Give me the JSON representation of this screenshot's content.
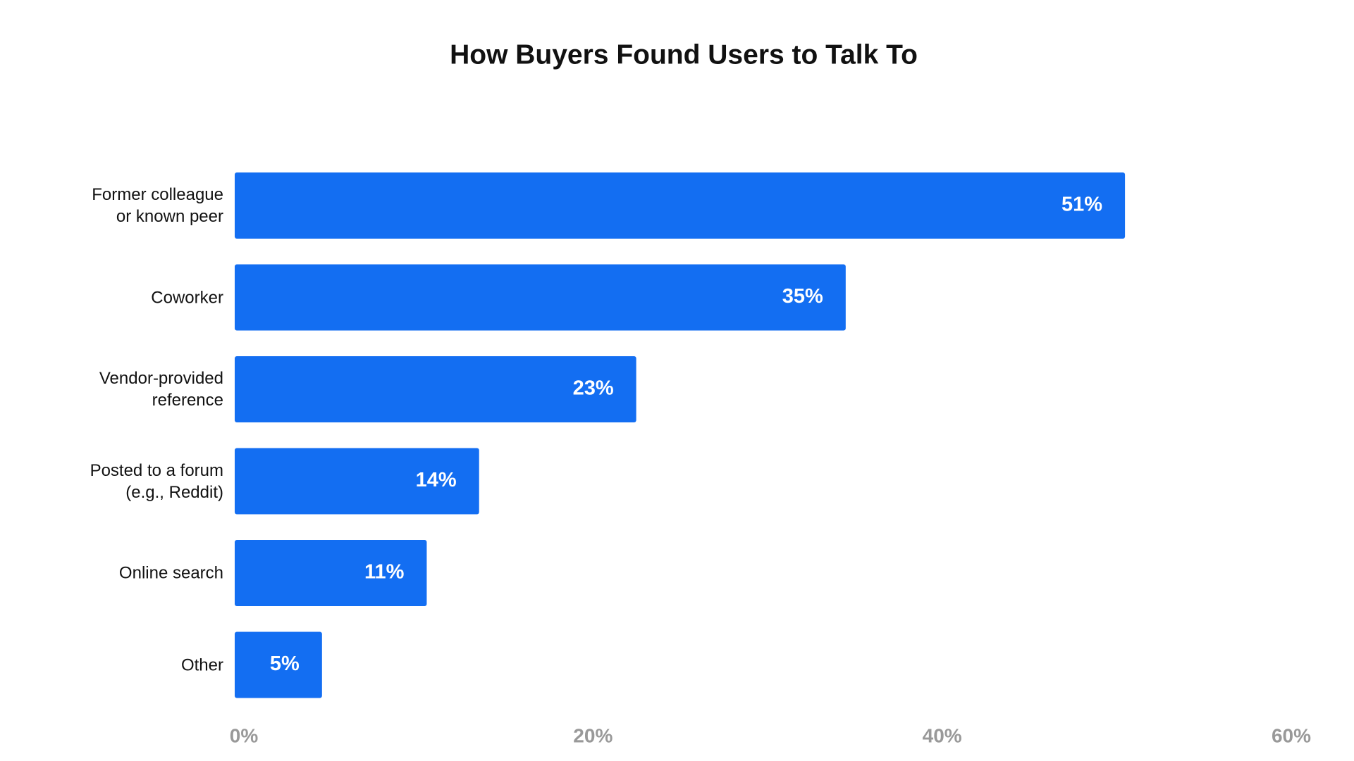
{
  "chart_data": {
    "type": "bar",
    "orientation": "horizontal",
    "title": "How Buyers Found Users to Talk To",
    "categories": [
      "Former colleague or known peer",
      "Coworker",
      "Vendor-provided reference",
      "Posted to a forum (e.g., Reddit)",
      "Online search",
      "Other"
    ],
    "values": [
      51,
      35,
      23,
      14,
      11,
      5
    ],
    "value_labels": [
      "51%",
      "35%",
      "23%",
      "14%",
      "11%",
      "5%"
    ],
    "color": "#136ef2",
    "xlim": [
      0,
      60
    ],
    "xticks": [
      {
        "value": 0,
        "label": "0%"
      },
      {
        "value": 20,
        "label": "20%"
      },
      {
        "value": 40,
        "label": "40%"
      },
      {
        "value": 60,
        "label": "60%"
      }
    ],
    "grid": false
  }
}
